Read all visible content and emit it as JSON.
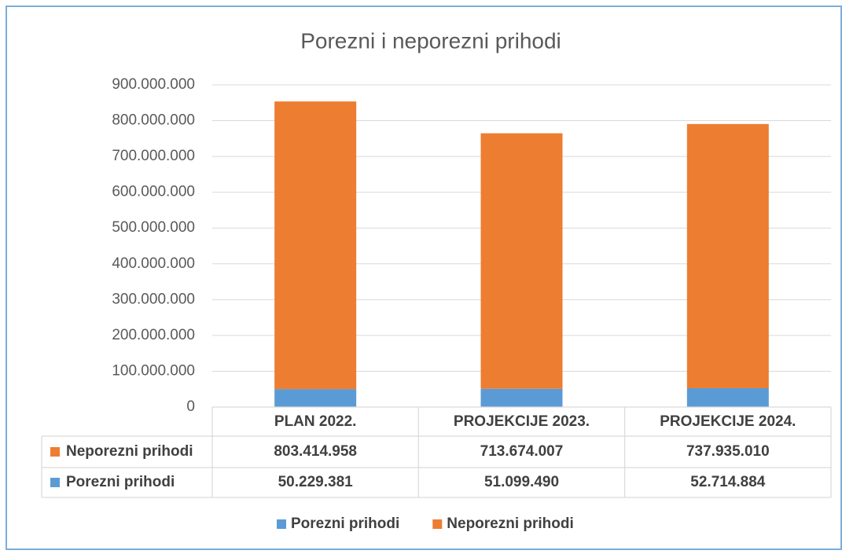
{
  "chart_data": {
    "type": "stacked_bar",
    "title": "Porezni i neporezni prihodi",
    "categories": [
      "PLAN 2022.",
      "PROJEKCIJE 2023.",
      "PROJEKCIJE 2024."
    ],
    "series": [
      {
        "name": "Porezni prihodi",
        "color": "#5b9bd5",
        "values": [
          50229381,
          51099490,
          52714884
        ],
        "value_labels": [
          "50.229.381",
          "51.099.490",
          "52.714.884"
        ]
      },
      {
        "name": "Neporezni prihodi",
        "color": "#ed7d31",
        "values": [
          803414958,
          713674007,
          737935010
        ],
        "value_labels": [
          "803.414.958",
          "713.674.007",
          "737.935.010"
        ]
      }
    ],
    "ylim": [
      0,
      900000000
    ],
    "yticks": [
      0,
      {
        "value": 100000000,
        "label": "100.000.000"
      },
      {
        "value": 200000000,
        "label": "200.000.000"
      },
      {
        "value": 300000000,
        "label": "300.000.000"
      },
      {
        "value": 400000000,
        "label": "400.000.000"
      },
      {
        "value": 500000000,
        "label": "500.000.000"
      },
      {
        "value": 600000000,
        "label": "600.000.000"
      },
      {
        "value": 700000000,
        "label": "700.000.000"
      },
      {
        "value": 800000000,
        "label": "800.000.000"
      },
      {
        "value": 900000000,
        "label": "900.000.000"
      }
    ],
    "grid": true
  }
}
